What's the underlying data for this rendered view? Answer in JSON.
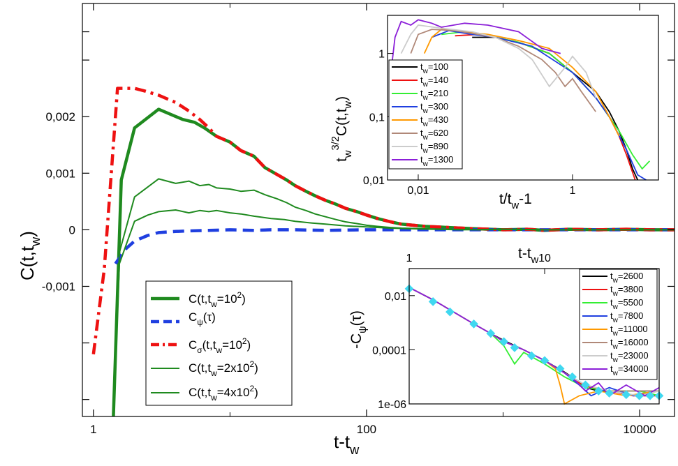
{
  "chart_data": [
    {
      "type": "line",
      "title": "",
      "xlabel": "t-t_w",
      "ylabel": "C(t,t_w)",
      "xscale": "log",
      "xlim": [
        0.83,
        18000
      ],
      "ylim": [
        -0.0033,
        0.004
      ],
      "xticks": [
        {
          "v": 1,
          "label": "1"
        },
        {
          "v": 100,
          "label": "100"
        },
        {
          "v": 10000,
          "label": "10000"
        }
      ],
      "yticks": [
        {
          "v": -0.001,
          "label": "-0,001"
        },
        {
          "v": 0,
          "label": "0"
        },
        {
          "v": 0.001,
          "label": "0,001"
        },
        {
          "v": 0.002,
          "label": "0,002"
        }
      ],
      "legend_position": "bottom-left",
      "series": [
        {
          "key": "c_tw100",
          "name": "C(t,t_w=10^2)",
          "color": "#1f8a1f",
          "width": 4.5,
          "dash": "",
          "x": [
            1.4,
            1.6,
            2,
            3,
            4.5,
            5.5,
            6.5,
            8,
            10,
            12,
            15,
            18,
            22,
            26,
            30,
            36,
            42,
            50,
            60,
            70,
            85,
            100,
            120,
            150,
            180,
            220,
            270,
            330,
            400,
            500,
            600,
            800,
            1000,
            1500,
            2000,
            3000,
            5000,
            8000,
            12000,
            18000
          ],
          "y": [
            -0.0033,
            0.00088,
            0.0018,
            0.00213,
            0.00195,
            0.0019,
            0.0018,
            0.00165,
            0.00155,
            0.0014,
            0.0013,
            0.0011,
            0.00098,
            0.00088,
            0.00078,
            0.00068,
            0.0006,
            0.00052,
            0.00045,
            0.00038,
            0.00032,
            0.00026,
            0.0002,
            0.00014,
            0.0001,
            8e-05,
            6e-05,
            5e-05,
            4e-05,
            3e-05,
            2e-05,
            1e-05,
            0,
            1e-05,
            -1e-05,
            1e-05,
            0,
            1e-05,
            0,
            0
          ]
        },
        {
          "key": "c_psi",
          "name": "C_psi(tau)",
          "color": "#1f3fe0",
          "width": 4.5,
          "dash": "16,9",
          "x": [
            1.45,
            1.7,
            2,
            2.5,
            3,
            4,
            5,
            7,
            10,
            15,
            20,
            30,
            50,
            100,
            200,
            500,
            1000,
            3000,
            10000,
            18000
          ],
          "y": [
            -0.0006,
            -0.00035,
            -0.0002,
            -0.0001,
            -5e-05,
            -3e-05,
            -2e-05,
            -1e-05,
            0,
            -1e-05,
            0,
            0,
            -1e-05,
            0,
            0,
            0,
            0,
            0,
            0,
            0
          ]
        },
        {
          "key": "c_sigma",
          "name": "C_sigma(t,t_w=10^2)",
          "color": "#ee1111",
          "width": 4.5,
          "dash": "16,7,4,7",
          "x": [
            1,
            1.2,
            1.5,
            1.7,
            2,
            2.4,
            3,
            4,
            5,
            6,
            7,
            8,
            10,
            12,
            15,
            18,
            22,
            26,
            30,
            36,
            42,
            50,
            60,
            70,
            85,
            100,
            120,
            150,
            180,
            220,
            270,
            330,
            400,
            500,
            600,
            800,
            1000,
            1500,
            2000,
            3000,
            5000,
            8000,
            12000,
            18000
          ],
          "y": [
            -0.0022,
            -0.0007,
            0.0025,
            0.0025,
            0.0025,
            0.00245,
            0.00238,
            0.00225,
            0.0021,
            0.00195,
            0.0018,
            0.00165,
            0.00155,
            0.0014,
            0.0013,
            0.0011,
            0.00098,
            0.00088,
            0.00078,
            0.00068,
            0.0006,
            0.00052,
            0.00045,
            0.00038,
            0.00032,
            0.00026,
            0.0002,
            0.00014,
            0.0001,
            8e-05,
            6e-05,
            5e-05,
            4e-05,
            3e-05,
            2e-05,
            1e-05,
            0,
            1e-05,
            -1e-05,
            1e-05,
            0,
            1e-05,
            0,
            0
          ]
        },
        {
          "key": "c_tw200",
          "name": "C(t,t_w=2x10^2)",
          "color": "#1f8a1f",
          "width": 2,
          "dash": "",
          "x": [
            1.4,
            1.55,
            2,
            3,
            4,
            5,
            6,
            7,
            8,
            10,
            12,
            15,
            18,
            22,
            26,
            30,
            36,
            42,
            50,
            60,
            70,
            85,
            100,
            120,
            150,
            180,
            250,
            400,
            700,
            1000,
            2000,
            5000,
            10000,
            18000
          ],
          "y": [
            -0.0033,
            -0.0004,
            0.00058,
            0.0009,
            0.00082,
            0.00086,
            0.00078,
            0.0008,
            0.00074,
            0.00072,
            0.00068,
            0.0007,
            0.00062,
            0.00055,
            0.00048,
            0.0004,
            0.00034,
            0.00028,
            0.00023,
            0.00018,
            0.00014,
            0.00011,
            8e-05,
            6e-05,
            4e-05,
            3e-05,
            2e-05,
            1e-05,
            0,
            1e-05,
            0,
            0,
            0,
            0
          ]
        },
        {
          "key": "c_tw400",
          "name": "C(t,t_w=4x10^2)",
          "color": "#1f8a1f",
          "width": 2,
          "dash": "",
          "x": [
            1.4,
            1.55,
            2,
            2.5,
            3,
            4,
            5,
            6,
            7,
            8,
            10,
            12,
            15,
            20,
            25,
            30,
            40,
            50,
            70,
            100,
            150,
            200,
            300,
            500,
            1000,
            2000,
            5000,
            10000,
            18000
          ],
          "y": [
            -0.0033,
            -0.0006,
            0.00015,
            0.00026,
            0.00032,
            0.00035,
            0.0003,
            0.00034,
            0.00032,
            0.00034,
            0.0003,
            0.00028,
            0.00024,
            0.0002,
            0.00018,
            0.00015,
            0.00012,
            0.0001,
            7e-05,
            5e-05,
            3e-05,
            2e-05,
            1e-05,
            0,
            1e-05,
            0,
            0,
            0,
            0
          ]
        }
      ]
    },
    {
      "type": "line",
      "title": "",
      "xlabel": "t/t_w-1",
      "ylabel": "t_w^(3/2) C(t,t_w)",
      "xscale": "log",
      "yscale": "log",
      "xlim": [
        0.004,
        13
      ],
      "ylim": [
        0.01,
        4
      ],
      "xticks": [
        {
          "v": 0.01,
          "label": "0,01"
        },
        {
          "v": 1,
          "label": "1"
        }
      ],
      "yticks": [
        {
          "v": 0.01,
          "label": "0,01"
        },
        {
          "v": 0.1,
          "label": "0,1"
        },
        {
          "v": 1,
          "label": "1"
        }
      ],
      "legend_position": "left",
      "series": [
        {
          "name": "t_w=100",
          "color": "#000000",
          "x": [
            0.05,
            0.1,
            0.2,
            0.5,
            1,
            2,
            3,
            4,
            5,
            6,
            7
          ],
          "y": [
            1.8,
            1.8,
            1.5,
            1.0,
            0.5,
            0.25,
            0.12,
            0.06,
            0.03,
            0.015,
            0.01
          ]
        },
        {
          "name": "t_w=140",
          "color": "#ee1111",
          "x": [
            0.03,
            0.06,
            0.1,
            0.2,
            0.5,
            1,
            2,
            3,
            4,
            5,
            6.5
          ],
          "y": [
            1.9,
            2.0,
            1.8,
            1.5,
            1.0,
            0.5,
            0.2,
            0.1,
            0.05,
            0.025,
            0.01
          ]
        },
        {
          "name": "t_w=210",
          "color": "#33ee33",
          "x": [
            0.02,
            0.04,
            0.08,
            0.2,
            0.5,
            1,
            2,
            4,
            6,
            8,
            10
          ],
          "y": [
            2.0,
            2.2,
            1.9,
            1.5,
            1.0,
            0.5,
            0.2,
            0.06,
            0.025,
            0.015,
            0.02
          ]
        },
        {
          "name": "t_w=300",
          "color": "#1f3fe0",
          "x": [
            0.015,
            0.025,
            0.05,
            0.1,
            0.3,
            1,
            2,
            3,
            5,
            7,
            9
          ],
          "y": [
            1.8,
            2.3,
            2.0,
            1.8,
            1.3,
            0.5,
            0.2,
            0.1,
            0.03,
            0.012,
            0.01
          ]
        },
        {
          "name": "t_w=430",
          "color": "#ff9900",
          "x": [
            0.012,
            0.015,
            0.02,
            0.04,
            0.08,
            0.2,
            0.5,
            1,
            2,
            3,
            4
          ],
          "y": [
            1.0,
            1.8,
            2.4,
            2.2,
            2.0,
            1.6,
            1.2,
            0.6,
            0.25,
            0.1,
            0.05
          ]
        },
        {
          "name": "t_w=620",
          "color": "#b08878",
          "x": [
            0.008,
            0.01,
            0.015,
            0.03,
            0.06,
            0.1,
            0.2,
            0.4,
            0.6,
            0.8,
            1,
            1.3,
            2
          ],
          "y": [
            1.0,
            2.0,
            2.4,
            2.3,
            2.0,
            1.8,
            1.3,
            0.8,
            0.5,
            0.3,
            0.4,
            0.25,
            0.12
          ]
        },
        {
          "name": "t_w=890",
          "color": "#cccccc",
          "x": [
            0.006,
            0.008,
            0.01,
            0.02,
            0.05,
            0.1,
            0.2,
            0.3,
            0.5,
            0.8,
            1,
            1.5,
            2
          ],
          "y": [
            1.0,
            2.0,
            2.8,
            2.5,
            2.2,
            1.8,
            1.2,
            0.8,
            0.3,
            0.6,
            0.9,
            0.5,
            0.2
          ]
        },
        {
          "name": "t_w=1300",
          "color": "#8b1fd8",
          "x": [
            0.0045,
            0.005,
            0.006,
            0.008,
            0.01,
            0.015,
            0.02,
            0.04,
            0.08,
            0.2,
            0.4,
            0.7
          ],
          "y": [
            0.6,
            1.8,
            3.2,
            2.8,
            3.4,
            3.0,
            2.6,
            3.0,
            2.8,
            2.2,
            1.2,
            1.0
          ]
        }
      ]
    },
    {
      "type": "line",
      "title": "",
      "xlabel": "t-t_w",
      "ylabel": "-C_psi(tau)",
      "xscale": "log",
      "yscale": "log",
      "xlim": [
        1,
        70
      ],
      "ylim": [
        1e-06,
        0.1
      ],
      "xticks": [
        {
          "v": 1,
          "label": "1"
        },
        {
          "v": 10,
          "label": "10"
        }
      ],
      "yticks": [
        {
          "v": 1e-06,
          "label": "1e-06"
        },
        {
          "v": 0.0001,
          "label": "0,0001"
        },
        {
          "v": 0.01,
          "label": "0,01"
        }
      ],
      "legend_position": "top-right",
      "series": [
        {
          "name": "t_w=2600",
          "color": "#000000",
          "x": [
            1,
            1.5,
            2,
            3,
            4,
            5,
            7,
            10,
            14,
            17,
            20,
            25,
            35,
            50,
            70
          ],
          "y": [
            0.02,
            0.007,
            0.003,
            0.0009,
            0.0004,
            0.00022,
            0.0001,
            4e-05,
            1.5e-05,
            8e-06,
            4e-06,
            3e-06,
            3e-06,
            3e-06,
            3e-06
          ]
        },
        {
          "name": "t_w=3800",
          "color": "#ee1111",
          "x": [
            1,
            1.5,
            2,
            3,
            4,
            5,
            7,
            10,
            14,
            18,
            22,
            30,
            45,
            70
          ],
          "y": [
            0.02,
            0.007,
            0.003,
            0.0009,
            0.0004,
            0.0002,
            0.0001,
            4e-05,
            1.4e-05,
            6e-06,
            4e-06,
            3e-06,
            2e-06,
            2e-06
          ]
        },
        {
          "name": "t_w=5500",
          "color": "#33ee33",
          "x": [
            1,
            1.5,
            2,
            3,
            4,
            5,
            6,
            7,
            10,
            14,
            20,
            30,
            50,
            70
          ],
          "y": [
            0.02,
            0.007,
            0.003,
            0.0009,
            0.0004,
            0.00014,
            3e-05,
            8e-05,
            3e-05,
            1e-05,
            4e-06,
            3e-06,
            3e-06,
            2e-06
          ]
        },
        {
          "name": "t_w=7800",
          "color": "#1f3fe0",
          "x": [
            1,
            1.5,
            2,
            3,
            4,
            5,
            7,
            10,
            14,
            18,
            22,
            30,
            45,
            70
          ],
          "y": [
            0.02,
            0.007,
            0.003,
            0.0009,
            0.0004,
            0.0002,
            0.0001,
            4e-05,
            1.4e-05,
            5e-06,
            2e-06,
            4e-06,
            2e-06,
            3e-06
          ]
        },
        {
          "name": "t_w=11000",
          "color": "#ff9900",
          "x": [
            1,
            1.5,
            2,
            3,
            4,
            5,
            7,
            10,
            12,
            13,
            14,
            18,
            25,
            40,
            70
          ],
          "y": [
            0.02,
            0.007,
            0.003,
            0.0009,
            0.0004,
            0.0002,
            0.0001,
            4e-05,
            2e-05,
            5e-06,
            1e-06,
            2e-06,
            3e-06,
            2e-06,
            3e-06
          ]
        },
        {
          "name": "t_w=16000",
          "color": "#b08878",
          "x": [
            1,
            1.5,
            2,
            3,
            4,
            5,
            7,
            10,
            14,
            20,
            30,
            50,
            70
          ],
          "y": [
            0.02,
            0.007,
            0.003,
            0.0009,
            0.0004,
            0.0002,
            0.0001,
            4e-05,
            1.4e-05,
            5e-06,
            3e-06,
            3e-06,
            3e-06
          ]
        },
        {
          "name": "t_w=23000",
          "color": "#cccccc",
          "x": [
            1,
            1.5,
            2,
            3,
            4,
            5,
            7,
            10,
            14,
            20,
            30,
            50,
            70
          ],
          "y": [
            0.02,
            0.007,
            0.003,
            0.0009,
            0.0004,
            0.0002,
            0.0001,
            4e-05,
            1.4e-05,
            5e-06,
            3e-06,
            2e-06,
            3e-06
          ]
        },
        {
          "name": "t_w=34000",
          "color": "#8b1fd8",
          "x": [
            1,
            1.5,
            2,
            3,
            4,
            5,
            7,
            10,
            14,
            17,
            20,
            25,
            30,
            40,
            55,
            70
          ],
          "y": [
            0.02,
            0.007,
            0.003,
            0.0009,
            0.0004,
            0.0002,
            0.0001,
            4e-05,
            1.4e-05,
            7e-06,
            3e-06,
            6e-06,
            2e-06,
            5e-06,
            2e-06,
            4e-06
          ]
        }
      ],
      "markers": {
        "name": "fit",
        "color": "#40d8f0",
        "x": [
          1,
          1.5,
          2,
          3,
          4,
          5,
          6,
          8,
          10,
          13,
          16,
          20,
          25,
          30,
          40,
          50,
          60,
          70
        ],
        "y": [
          0.018,
          0.006,
          0.0025,
          0.0009,
          0.0004,
          0.0002,
          0.00012,
          6e-05,
          4e-05,
          2e-05,
          1e-05,
          5e-06,
          3e-06,
          2.5e-06,
          2.2e-06,
          2e-06,
          2e-06,
          2e-06
        ]
      }
    }
  ]
}
